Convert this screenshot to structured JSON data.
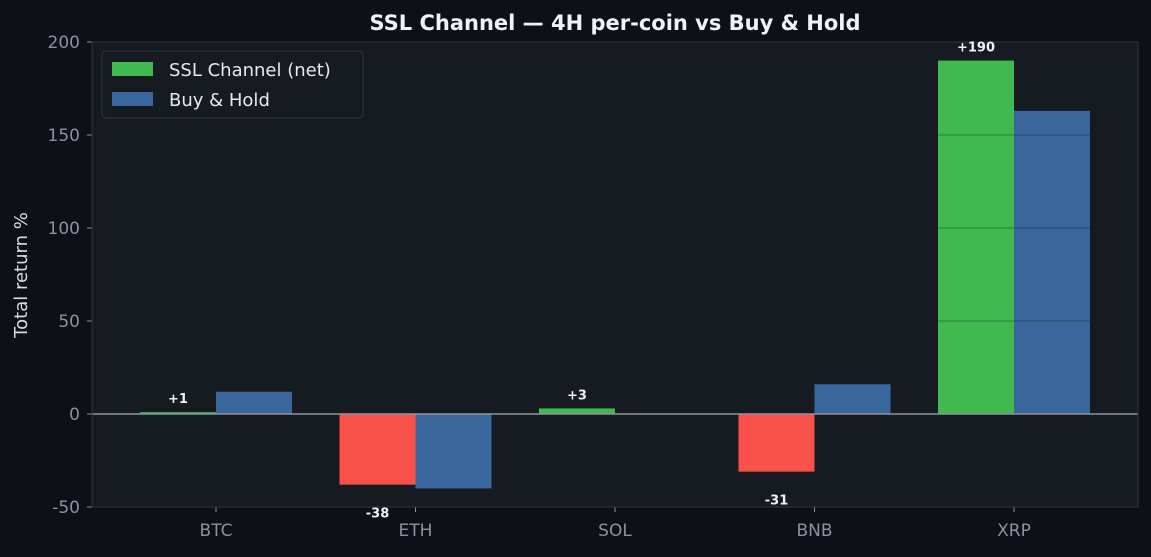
{
  "chart_data": {
    "type": "bar",
    "title": "SSL Channel — 4H per-coin vs Buy & Hold",
    "xlabel": "",
    "ylabel": "Total return %",
    "categories": [
      "BTC",
      "ETH",
      "SOL",
      "BNB",
      "XRP"
    ],
    "series": [
      {
        "name": "SSL Channel (net)",
        "values": [
          1,
          -38,
          3,
          -31,
          190
        ],
        "positive_color": "#3fb950",
        "negative_color": "#f85149",
        "data_labels": [
          "+1",
          "-38",
          "+3",
          "-31",
          "+190"
        ]
      },
      {
        "name": "Buy & Hold",
        "values": [
          12,
          -40,
          0,
          16,
          163
        ],
        "color": "#3a679b"
      }
    ],
    "ylim": [
      -50,
      200
    ],
    "yticks": [
      -50,
      0,
      50,
      100,
      150,
      200
    ],
    "grid": false,
    "legend": "top-left",
    "colors": {
      "page_background": "#0d1117",
      "plot_background": "#161b22",
      "axis_frame": "#30363d",
      "zero_line": "#8b949e"
    }
  }
}
